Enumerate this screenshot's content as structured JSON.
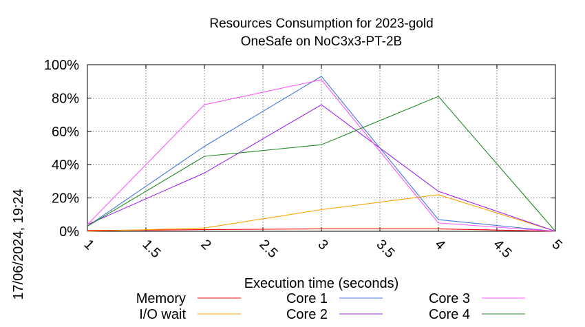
{
  "chart_data": {
    "type": "line",
    "title": "Resources Consumption for 2023-gold",
    "subtitle": "OneSafe on NoC3x3-PT-2B",
    "xlabel": "Execution time (seconds)",
    "ylabel": "",
    "xlim": [
      1,
      5
    ],
    "ylim": [
      0,
      100
    ],
    "x_ticks": [
      "1",
      "1.5",
      "2",
      "2.5",
      "3",
      "3.5",
      "4",
      "4.5",
      "5"
    ],
    "y_ticks": [
      "0%",
      "20%",
      "40%",
      "60%",
      "80%",
      "100%"
    ],
    "grid": true,
    "legend_position": "bottom",
    "timestamp": "17/06/2024, 19:24",
    "x": [
      1,
      2,
      3,
      4,
      5
    ],
    "series": [
      {
        "name": "Memory",
        "color": "#ff0000",
        "values": [
          0.5,
          1,
          1.5,
          1.5,
          0
        ]
      },
      {
        "name": "I/O wait",
        "color": "#ffa500",
        "values": [
          0,
          2,
          13,
          22,
          0
        ]
      },
      {
        "name": "Core 1",
        "color": "#4477dd",
        "values": [
          3,
          51,
          93,
          7,
          0
        ]
      },
      {
        "name": "Core 2",
        "color": "#a020f0",
        "values": [
          4,
          35,
          76,
          24,
          0
        ]
      },
      {
        "name": "Core 3",
        "color": "#ff55ff",
        "values": [
          4,
          76,
          91,
          5,
          0
        ]
      },
      {
        "name": "Core 4",
        "color": "#228b22",
        "values": [
          3,
          45,
          52,
          81,
          0
        ]
      }
    ]
  }
}
